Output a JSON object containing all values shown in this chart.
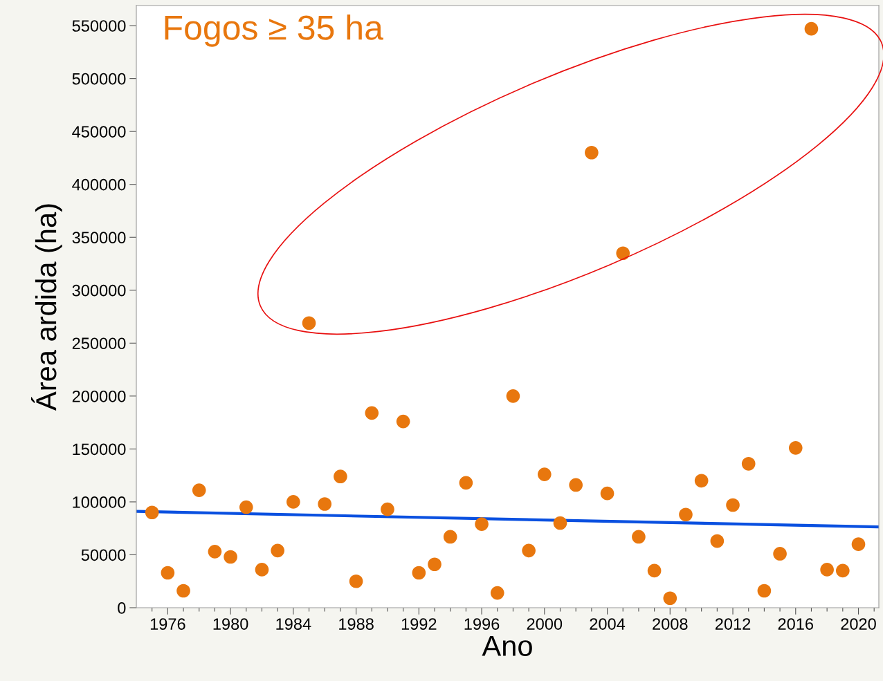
{
  "chart_data": {
    "type": "scatter",
    "xlabel": "Ano",
    "ylabel": "Área ardida (ha)",
    "annotations": [
      "Fogos ≥ 35 ha"
    ],
    "xlim": [
      1974,
      2021.3
    ],
    "ylim": [
      0,
      569000
    ],
    "xticks": [
      {
        "value": 1975,
        "label": null
      },
      1976,
      {
        "value": 1977,
        "label": null
      },
      {
        "value": 1978,
        "label": null
      },
      {
        "value": 1979,
        "label": null
      },
      1980,
      {
        "value": 1981,
        "label": null
      },
      {
        "value": 1982,
        "label": null
      },
      {
        "value": 1983,
        "label": null
      },
      1984,
      {
        "value": 1985,
        "label": null
      },
      {
        "value": 1986,
        "label": null
      },
      {
        "value": 1987,
        "label": null
      },
      1988,
      {
        "value": 1989,
        "label": null
      },
      {
        "value": 1990,
        "label": null
      },
      {
        "value": 1991,
        "label": null
      },
      1992,
      {
        "value": 1993,
        "label": null
      },
      {
        "value": 1994,
        "label": null
      },
      {
        "value": 1995,
        "label": null
      },
      1996,
      {
        "value": 1997,
        "label": null
      },
      {
        "value": 1998,
        "label": null
      },
      {
        "value": 1999,
        "label": null
      },
      2000,
      {
        "value": 2001,
        "label": null
      },
      {
        "value": 2002,
        "label": null
      },
      {
        "value": 2003,
        "label": null
      },
      2004,
      {
        "value": 2005,
        "label": null
      },
      {
        "value": 2006,
        "label": null
      },
      {
        "value": 2007,
        "label": null
      },
      2008,
      {
        "value": 2009,
        "label": null
      },
      {
        "value": 2010,
        "label": null
      },
      {
        "value": 2011,
        "label": null
      },
      2012,
      {
        "value": 2013,
        "label": null
      },
      {
        "value": 2014,
        "label": null
      },
      {
        "value": 2015,
        "label": null
      },
      2016,
      {
        "value": 2017,
        "label": null
      },
      {
        "value": 2018,
        "label": null
      },
      {
        "value": 2019,
        "label": null
      },
      2020,
      {
        "value": 2021,
        "label": null
      }
    ],
    "yticks": [
      0,
      50000,
      100000,
      150000,
      200000,
      250000,
      300000,
      350000,
      400000,
      450000,
      500000,
      550000
    ],
    "grid": false,
    "legend": false,
    "marker": "circle",
    "series": [
      {
        "color": "#e8770e",
        "type": "scatter",
        "x": [
          1975,
          1976,
          1977,
          1978,
          1979,
          1980,
          1981,
          1982,
          1983,
          1984,
          1985,
          1986,
          1987,
          1988,
          1989,
          1990,
          1991,
          1992,
          1993,
          1994,
          1995,
          1996,
          1997,
          1998,
          1999,
          2000,
          2001,
          2002,
          2003,
          2004,
          2005,
          2006,
          2007,
          2008,
          2009,
          2010,
          2011,
          2012,
          2013,
          2014,
          2015,
          2016,
          2017,
          2018,
          2019,
          2020
        ],
        "values": [
          90000,
          33000,
          16000,
          111000,
          53000,
          48000,
          95000,
          36000,
          54000,
          100000,
          269000,
          98000,
          124000,
          25000,
          184000,
          93000,
          176000,
          33000,
          41000,
          67000,
          118000,
          79000,
          14000,
          200000,
          54000,
          126000,
          80000,
          116000,
          430000,
          108000,
          335000,
          67000,
          35000,
          9000,
          88000,
          120000,
          63000,
          97000,
          136000,
          16000,
          51000,
          151000,
          547000,
          36000,
          35000,
          60000
        ]
      },
      {
        "color": "#0a50e0",
        "type": "line",
        "marker": "none",
        "x": [
          1974,
          2021.3
        ],
        "values": [
          91000,
          76300
        ]
      }
    ]
  }
}
